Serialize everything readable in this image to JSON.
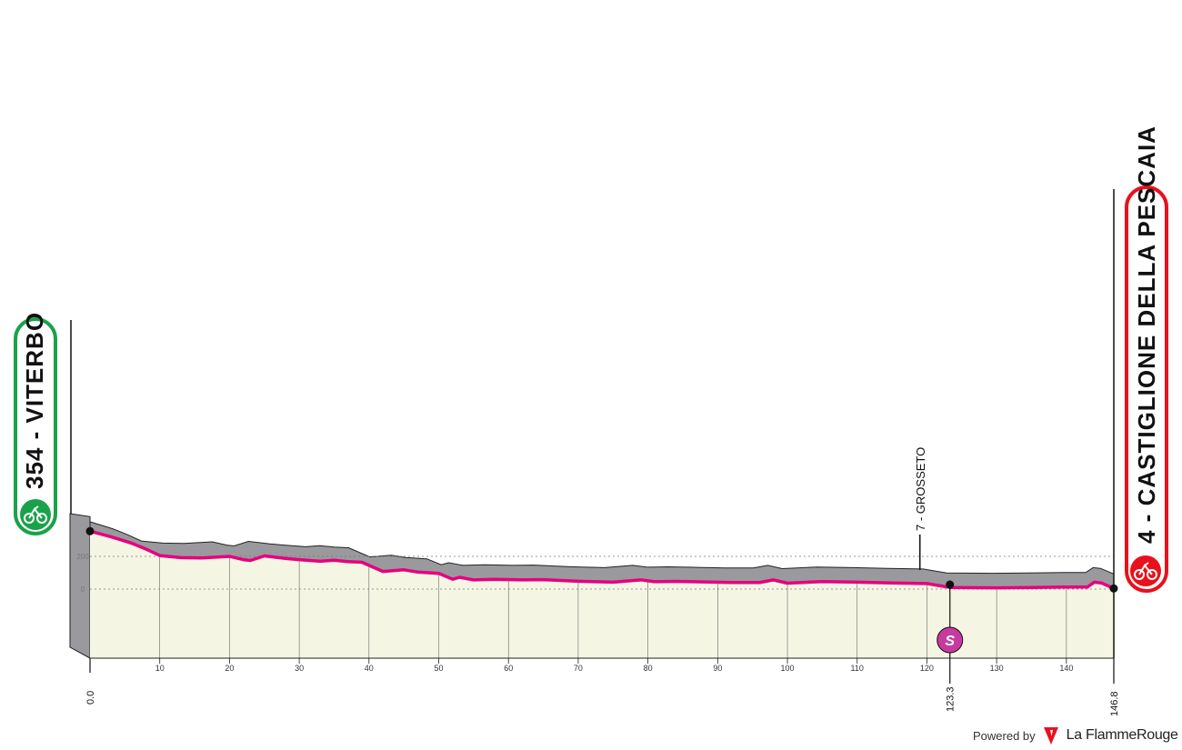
{
  "chart_data": {
    "type": "area",
    "xlim": [
      0,
      146.8
    ],
    "x_ticks": [
      0,
      10,
      20,
      30,
      40,
      50,
      60,
      70,
      80,
      90,
      100,
      110,
      120,
      130,
      140
    ],
    "x_tick_labels": [
      "0",
      "10",
      "20",
      "30",
      "40",
      "50",
      "60",
      "70",
      "80",
      "90",
      "100",
      "110",
      "120",
      "130",
      "140"
    ],
    "elevation_gridlines": [
      "200",
      "0"
    ],
    "start": {
      "km": "0.0",
      "label": "354 - VITERBO",
      "elevation_m": 354
    },
    "finish": {
      "km": "146.8",
      "label": "4 - CASTIGLIONE DELLA PESCAIA",
      "elevation_m": 4
    },
    "intermediate": {
      "label": "7 - GROSSETO",
      "elevation_m": 7,
      "km": 119
    },
    "sprint": {
      "km": "123.3",
      "symbol": "S"
    },
    "profile": {
      "km": [
        0,
        3,
        6,
        8,
        10,
        13,
        16,
        20,
        22,
        23,
        25,
        28,
        30,
        33,
        35,
        37,
        39,
        42,
        45,
        47,
        50,
        52,
        53,
        55,
        58,
        62,
        65,
        70,
        75,
        79,
        81,
        84,
        88,
        92,
        96,
        98,
        100,
        105,
        110,
        115,
        120,
        123.3,
        130,
        135,
        140,
        143,
        144,
        145,
        146.8
      ],
      "elevation_m": [
        354,
        320,
        280,
        245,
        205,
        192,
        190,
        200,
        180,
        175,
        203,
        188,
        180,
        170,
        176,
        168,
        164,
        108,
        118,
        104,
        96,
        60,
        72,
        56,
        60,
        56,
        58,
        48,
        42,
        56,
        45,
        47,
        44,
        40,
        40,
        56,
        36,
        46,
        42,
        38,
        34,
        10,
        8,
        10,
        12,
        12,
        42,
        38,
        4
      ]
    },
    "colors": {
      "profile_line": "#e6007e",
      "side_fill": "#9a9a9e",
      "ground_fill": "#f5f5e4",
      "start_badge": "#1aa24a",
      "finish_badge": "#e8111c",
      "sprint_badge": "#c73ba0"
    }
  },
  "credit": {
    "powered_by": "Powered by",
    "brand": "La FlammeRouge"
  }
}
